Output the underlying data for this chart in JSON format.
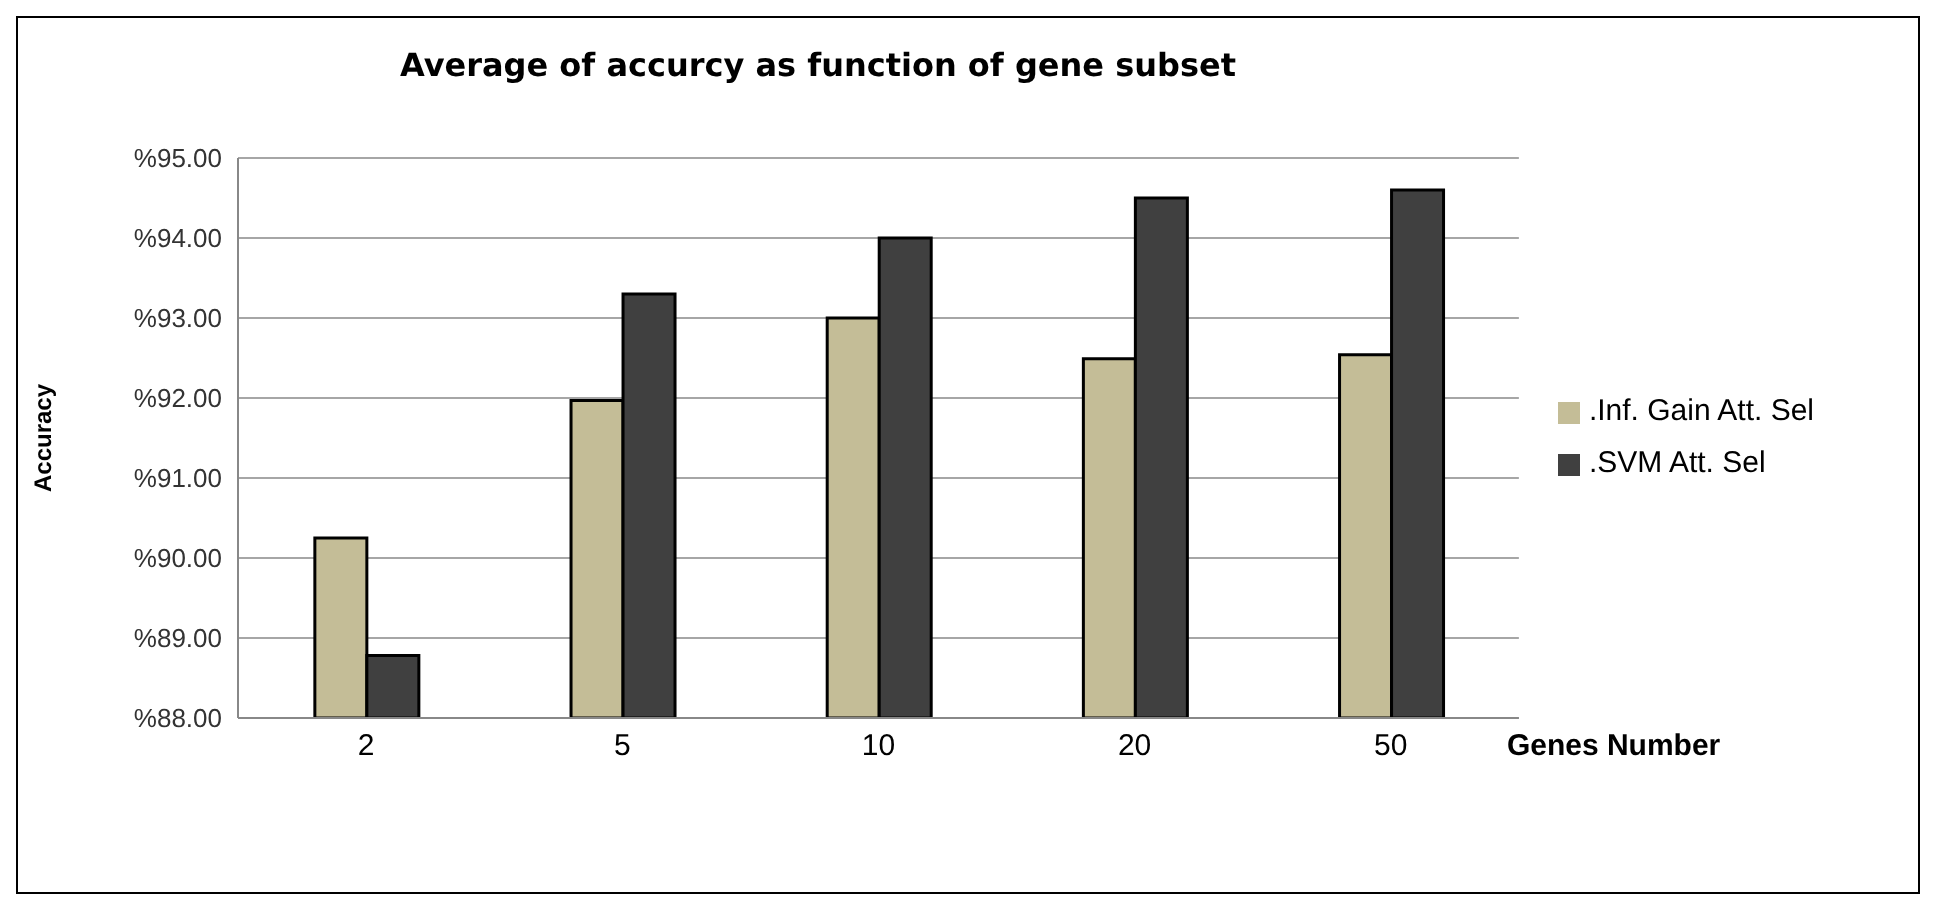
{
  "chart_data": {
    "type": "bar",
    "title": "Average of accurcy as function of  gene subset",
    "xlabel": "Genes Number",
    "ylabel": "Accuracy",
    "categories": [
      "2",
      "5",
      "10",
      "20",
      "50"
    ],
    "series": [
      {
        "name": ".Inf. Gain Att. Sel",
        "color": "#c4bd97",
        "values": [
          90.25,
          91.97,
          93.0,
          92.49,
          92.54
        ]
      },
      {
        "name": ".SVM Att. Sel",
        "color": "#404040",
        "values": [
          88.78,
          93.3,
          94.0,
          94.5,
          94.6
        ]
      }
    ],
    "ylim": [
      88,
      95
    ],
    "yticks": [
      {
        "value": 88,
        "label": "%88.00"
      },
      {
        "value": 89,
        "label": "%89.00"
      },
      {
        "value": 90,
        "label": "%90.00"
      },
      {
        "value": 91,
        "label": "%91.00"
      },
      {
        "value": 92,
        "label": "%92.00"
      },
      {
        "value": 93,
        "label": "%93.00"
      },
      {
        "value": 94,
        "label": "%94.00"
      },
      {
        "value": 95,
        "label": "%95.00"
      }
    ],
    "grid": "y",
    "legend": "right"
  }
}
